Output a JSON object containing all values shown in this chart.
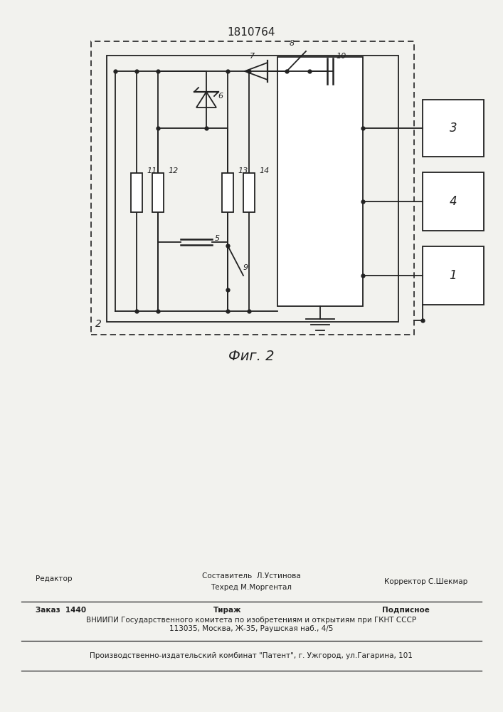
{
  "title": "1810764",
  "fig_label": "Фиг. 2",
  "bg_color": "#f2f2ee",
  "line_color": "#222222",
  "box2_label": "2",
  "box1_label": "1",
  "box3_label": "3",
  "box4_label": "4",
  "footer_line1_left": "Редактор",
  "footer_line1_center": "Составитель  Л.Устинова",
  "footer_line2_center": "Техред М.Моргентал",
  "footer_line2_right": "Корректор С.Шекмар",
  "footer_order": "Заказ  1440",
  "footer_tirazh": "Тираж",
  "footer_podpisnoe": "Подписное",
  "footer_vnipi": "ВНИИПИ Государственного комитета по изобретениям и открытиям при ГКНТ СССР",
  "footer_address": "113035, Москва, Ж-35, Раушская наб., 4/5",
  "footer_patent": "Производственно-издательский комбинат \"Патент\", г. Ужгород, ул.Гагарина, 101"
}
